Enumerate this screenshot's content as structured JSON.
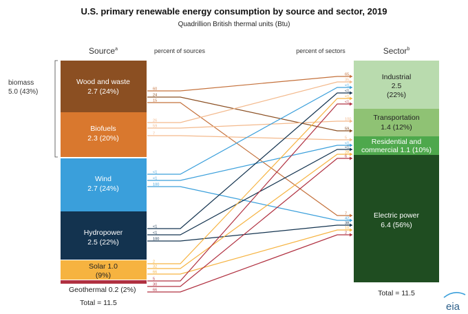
{
  "title": "U.S. primary renewable energy consumption by source and sector, 2019",
  "subtitle": "Quadrillion British thermal units (Btu)",
  "source_header": "Source",
  "source_header_sup": "a",
  "sector_header": "Sector",
  "sector_header_sup": "b",
  "pct_sources_label": "percent of sources",
  "pct_sectors_label": "percent of sectors",
  "biomass_label": "biomass",
  "biomass_value": "5.0 (43%)",
  "sources": [
    {
      "id": "wood",
      "line1": "Wood and waste",
      "line2": "2.7 (24%)",
      "color": "#8b4f22"
    },
    {
      "id": "biofuels",
      "line1": "Biofuels",
      "line2": "2.3  (20%)",
      "color": "#d9782e"
    },
    {
      "id": "wind",
      "line1": "Wind",
      "line2": "2.7 (24%)",
      "color": "#3a9fdb"
    },
    {
      "id": "hydro",
      "line1": "Hydropower",
      "line2": "2.5 (22%)",
      "color": "#13334f"
    },
    {
      "id": "solar",
      "line1": "Solar 1.0",
      "line2": "(9%)",
      "color": "#f6b340"
    },
    {
      "id": "geo",
      "line1": "Geothermal 0.2 (2%)",
      "line2": "",
      "color": "#b03040"
    }
  ],
  "sectors": [
    {
      "id": "industrial",
      "line1": "Industrial",
      "line2": "2.5",
      "line3": "(22%)",
      "color": "#b9dbae"
    },
    {
      "id": "transport",
      "line1": "Transportation",
      "line2": "1.4  (12%)",
      "line3": "",
      "color": "#8fc274"
    },
    {
      "id": "residential",
      "line1": "Residential and",
      "line2": "commercial 1.1 (10%)",
      "line3": "",
      "color": "#4ea84c"
    },
    {
      "id": "electric",
      "line1": "Electric power",
      "line2": "6.4  (56%)",
      "line3": "",
      "color": "#1f4d21"
    }
  ],
  "source_total": "Total = 11.5",
  "sector_total": "Total = 11.5",
  "logo": "eia",
  "flows": [
    {
      "from": "wood",
      "to": "industrial",
      "src_pct": "60",
      "dst_pct": "65",
      "color": "#c4703a"
    },
    {
      "from": "wood",
      "to": "residential",
      "src_pct": "24",
      "dst_pct": "59",
      "color": "#8b4f22"
    },
    {
      "from": "wood",
      "to": "electric",
      "src_pct": "15",
      "dst_pct": "7",
      "color": "#c4703a"
    },
    {
      "from": "biofuels",
      "to": "industrial",
      "src_pct": "26",
      "dst_pct": "35",
      "color": "#f3b98c"
    },
    {
      "from": "biofuels",
      "to": "transport",
      "src_pct": "59",
      "dst_pct": "100",
      "color": "#f3b98c"
    },
    {
      "from": "biofuels",
      "to": "residential",
      "src_pct": "7",
      "dst_pct": "5",
      "color": "#f3b98c"
    },
    {
      "from": "wind",
      "to": "industrial",
      "src_pct": "<1",
      "dst_pct": "<1",
      "color": "#3a9fdb"
    },
    {
      "from": "wind",
      "to": "residential",
      "src_pct": "<1",
      "dst_pct": "<1",
      "color": "#3a9fdb"
    },
    {
      "from": "wind",
      "to": "electric",
      "src_pct": "100",
      "dst_pct": "42",
      "color": "#3a9fdb"
    },
    {
      "from": "hydro",
      "to": "industrial",
      "src_pct": "<1",
      "dst_pct": "<1",
      "color": "#13334f"
    },
    {
      "from": "hydro",
      "to": "residential",
      "src_pct": "<1",
      "dst_pct": "<1",
      "color": "#13334f"
    },
    {
      "from": "hydro",
      "to": "electric",
      "src_pct": "100",
      "dst_pct": "38",
      "color": "#13334f"
    },
    {
      "from": "solar",
      "to": "industrial",
      "src_pct": "2",
      "dst_pct": "<1",
      "color": "#f6b340"
    },
    {
      "from": "solar",
      "to": "residential",
      "src_pct": "32",
      "dst_pct": "28",
      "color": "#f6b340"
    },
    {
      "from": "solar",
      "to": "electric",
      "src_pct": "66",
      "dst_pct": "10",
      "color": "#f6b340"
    },
    {
      "from": "geo",
      "to": "industrial",
      "src_pct": "5",
      "dst_pct": "<1",
      "color": "#b03040"
    },
    {
      "from": "geo",
      "to": "residential",
      "src_pct": "30",
      "dst_pct": "6",
      "color": "#b03040"
    },
    {
      "from": "geo",
      "to": "electric",
      "src_pct": "66",
      "dst_pct": "2",
      "color": "#b03040"
    }
  ]
}
